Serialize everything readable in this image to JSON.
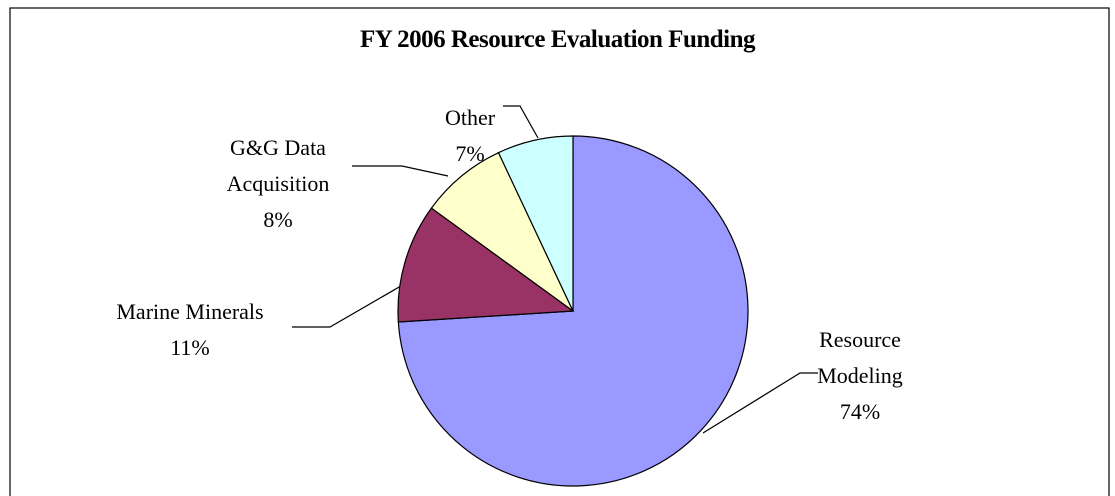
{
  "chart_data": {
    "type": "pie",
    "title": "FY 2006 Resource Evaluation Funding",
    "categories": [
      "Resource Modeling",
      "Marine Minerals",
      "G&G Data Acquisition",
      "Other"
    ],
    "values": [
      74,
      11,
      8,
      7
    ],
    "value_labels": [
      "74%",
      "11%",
      "8%",
      "7%"
    ],
    "colors": [
      "#9999ff",
      "#993366",
      "#ffffcc",
      "#ccffff"
    ]
  }
}
